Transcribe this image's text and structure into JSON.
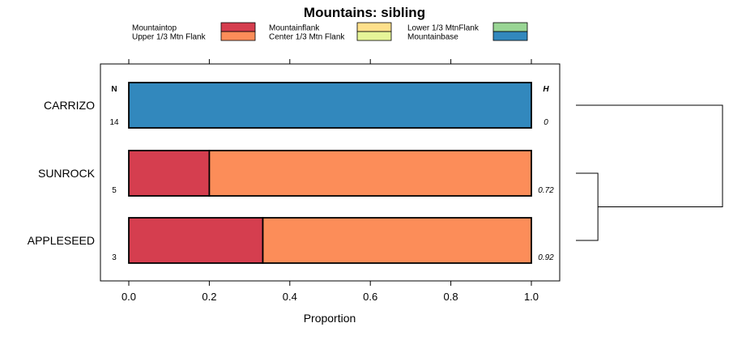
{
  "chart_data": {
    "type": "bar",
    "orientation": "horizontal",
    "stacked": true,
    "title": "Mountains: sibling",
    "xlabel": "Proportion",
    "ylabel": "",
    "xlim": [
      0,
      1
    ],
    "xticks": [
      "0.0",
      "0.2",
      "0.4",
      "0.6",
      "0.8",
      "1.0"
    ],
    "xtick_values": [
      0,
      0.2,
      0.4,
      0.6,
      0.8,
      1.0
    ],
    "legend": [
      {
        "name": "Mountaintop",
        "color": "#d53e4f"
      },
      {
        "name": "Upper 1/3 Mtn Flank",
        "color": "#fc8d59"
      },
      {
        "name": "Mountainflank",
        "color": "#fee08b"
      },
      {
        "name": "Center 1/3 Mtn Flank",
        "color": "#e6f598"
      },
      {
        "name": "Lower 1/3 MtnFlank",
        "color": "#99d594"
      },
      {
        "name": "Mountainbase",
        "color": "#3288bd"
      }
    ],
    "categories": [
      "CARRIZO",
      "SUNROCK",
      "APPLESEED"
    ],
    "n_header": "N",
    "h_header": "H",
    "n_values": [
      "14",
      "5",
      "3"
    ],
    "h_values": [
      "0",
      "0.72",
      "0.92"
    ],
    "series": [
      {
        "name": "Mountaintop",
        "values": [
          0,
          0.2,
          0.333
        ]
      },
      {
        "name": "Upper 1/3 Mtn Flank",
        "values": [
          0,
          0.8,
          0.667
        ]
      },
      {
        "name": "Mountainflank",
        "values": [
          0,
          0,
          0
        ]
      },
      {
        "name": "Center 1/3 Mtn Flank",
        "values": [
          0,
          0,
          0
        ]
      },
      {
        "name": "Lower 1/3 MtnFlank",
        "values": [
          0,
          0,
          0
        ]
      },
      {
        "name": "Mountainbase",
        "values": [
          1,
          0,
          0
        ]
      }
    ],
    "dendrogram": {
      "merges": [
        [
          "SUNROCK",
          "APPLESEED"
        ],
        [
          "CARRIZO",
          "SUNROCK+APPLESEED"
        ]
      ],
      "heights": [
        0.15,
        1.0
      ]
    }
  }
}
